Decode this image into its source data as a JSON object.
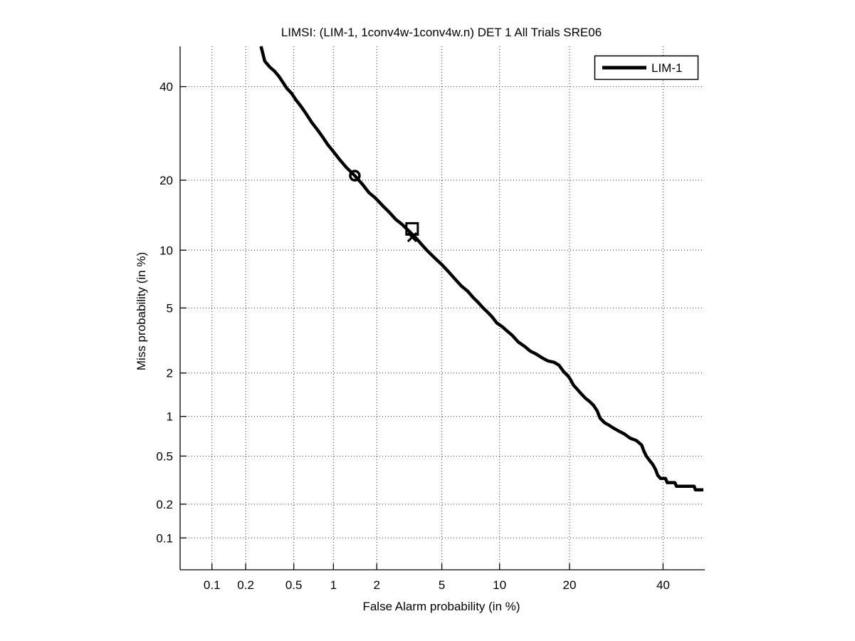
{
  "figure": {
    "background": "#ffffff",
    "foreground": "#000000",
    "grid_color": "#262626"
  },
  "chart_data": {
    "type": "line",
    "subtype": "DET-curve-normal-deviate-scale",
    "title": "LIMSI: (LIM-1, 1conv4w-1conv4w.n) DET 1 All Trials SRE06",
    "xlabel": "False Alarm probability (in %)",
    "ylabel": "Miss probability (in %)",
    "xlim": [
      0.05,
      50
    ],
    "ylim": [
      0.05,
      50
    ],
    "xticks": [
      0.1,
      0.2,
      0.5,
      1,
      2,
      5,
      10,
      20,
      40
    ],
    "yticks": [
      0.1,
      0.2,
      0.5,
      1,
      2,
      5,
      10,
      20,
      40
    ],
    "grid": "dotted",
    "legend": {
      "position": "top-right",
      "entries": [
        {
          "label": "LIM-1",
          "color": "#000000",
          "line_width": 5
        }
      ]
    },
    "series": [
      {
        "name": "LIM-1",
        "color": "#000000",
        "line_width": 4.5,
        "points": [
          [
            0.27,
            50
          ],
          [
            0.28,
            48.2
          ],
          [
            0.29,
            46.3
          ],
          [
            0.32,
            44.8
          ],
          [
            0.35,
            43.8
          ],
          [
            0.38,
            42.5
          ],
          [
            0.41,
            41.0
          ],
          [
            0.44,
            39.6
          ],
          [
            0.48,
            38.4
          ],
          [
            0.52,
            36.8
          ],
          [
            0.57,
            35.3
          ],
          [
            0.62,
            33.7
          ],
          [
            0.69,
            31.6
          ],
          [
            0.76,
            30.0
          ],
          [
            0.83,
            28.5
          ],
          [
            0.91,
            26.8
          ],
          [
            1.0,
            25.4
          ],
          [
            1.11,
            23.8
          ],
          [
            1.24,
            22.3
          ],
          [
            1.42,
            20.8
          ],
          [
            1.6,
            19.3
          ],
          [
            1.77,
            17.9
          ],
          [
            1.96,
            17.0
          ],
          [
            2.17,
            15.9
          ],
          [
            2.4,
            14.9
          ],
          [
            2.66,
            13.8
          ],
          [
            2.89,
            13.2
          ],
          [
            3.16,
            12.4
          ],
          [
            3.5,
            11.5
          ],
          [
            3.8,
            10.7
          ],
          [
            4.1,
            10.0
          ],
          [
            4.6,
            9.1
          ],
          [
            5.0,
            8.5
          ],
          [
            5.4,
            7.9
          ],
          [
            5.9,
            7.2
          ],
          [
            6.4,
            6.6
          ],
          [
            6.9,
            6.2
          ],
          [
            7.4,
            5.7
          ],
          [
            7.8,
            5.4
          ],
          [
            8.3,
            5.0
          ],
          [
            8.8,
            4.7
          ],
          [
            9.2,
            4.45
          ],
          [
            9.7,
            4.1
          ],
          [
            10.3,
            3.9
          ],
          [
            10.8,
            3.7
          ],
          [
            11.5,
            3.45
          ],
          [
            12.2,
            3.16
          ],
          [
            13.1,
            2.95
          ],
          [
            13.8,
            2.77
          ],
          [
            14.6,
            2.66
          ],
          [
            15.6,
            2.5
          ],
          [
            16.4,
            2.4
          ],
          [
            17.4,
            2.35
          ],
          [
            18.2,
            2.25
          ],
          [
            19.0,
            2.04
          ],
          [
            19.8,
            1.9
          ],
          [
            20.2,
            1.8
          ],
          [
            20.7,
            1.66
          ],
          [
            21.4,
            1.55
          ],
          [
            22.1,
            1.45
          ],
          [
            22.9,
            1.35
          ],
          [
            23.7,
            1.28
          ],
          [
            24.5,
            1.2
          ],
          [
            25.2,
            1.1
          ],
          [
            25.8,
            0.97
          ],
          [
            26.7,
            0.9
          ],
          [
            27.7,
            0.86
          ],
          [
            28.6,
            0.82
          ],
          [
            29.7,
            0.78
          ],
          [
            31.0,
            0.74
          ],
          [
            32.2,
            0.69
          ],
          [
            33.7,
            0.66
          ],
          [
            34.9,
            0.61
          ],
          [
            35.4,
            0.55
          ],
          [
            36.0,
            0.5
          ],
          [
            36.8,
            0.46
          ],
          [
            37.5,
            0.43
          ],
          [
            38.2,
            0.39
          ],
          [
            38.7,
            0.35
          ],
          [
            39.4,
            0.33
          ],
          [
            40.6,
            0.33
          ],
          [
            41.0,
            0.305
          ],
          [
            42.9,
            0.305
          ],
          [
            43.3,
            0.284
          ],
          [
            47.7,
            0.284
          ],
          [
            48.0,
            0.265
          ],
          [
            50,
            0.265
          ]
        ]
      }
    ],
    "markers": [
      {
        "shape": "circle",
        "x": 1.42,
        "y": 20.8
      },
      {
        "shape": "square",
        "x": 3.35,
        "y": 12.55
      },
      {
        "shape": "x",
        "x": 3.35,
        "y": 11.5
      }
    ]
  }
}
